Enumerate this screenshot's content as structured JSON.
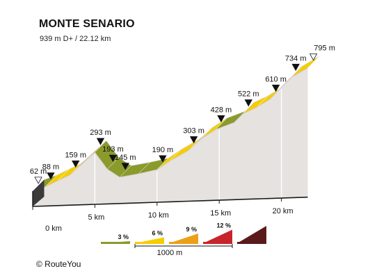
{
  "header": {
    "title": "MONTE SENARIO",
    "subtitle": "939 m D+ / 22.12 km"
  },
  "footer": {
    "credit": "© RouteYou"
  },
  "chart_data": {
    "type": "area",
    "title": "MONTE SENARIO",
    "subtitle": "939 m D+ / 22.12 km",
    "x_unit": "km",
    "y_unit": "m",
    "xlim": [
      0,
      22.12
    ],
    "x_ticks": [
      {
        "km": 0,
        "label": "0 km"
      },
      {
        "km": 5,
        "label": "5 km"
      },
      {
        "km": 10,
        "label": "10 km"
      },
      {
        "km": 15,
        "label": "15 km"
      },
      {
        "km": 20,
        "label": "20 km"
      }
    ],
    "profile": [
      {
        "km": 0.0,
        "elevation": 62
      },
      {
        "km": 1.0,
        "elevation": 88
      },
      {
        "km": 3.0,
        "elevation": 159
      },
      {
        "km": 5.0,
        "elevation": 293
      },
      {
        "km": 6.0,
        "elevation": 193
      },
      {
        "km": 7.0,
        "elevation": 145
      },
      {
        "km": 8.5,
        "elevation": 165
      },
      {
        "km": 10.0,
        "elevation": 190
      },
      {
        "km": 11.0,
        "elevation": 240
      },
      {
        "km": 12.5,
        "elevation": 303
      },
      {
        "km": 13.5,
        "elevation": 370
      },
      {
        "km": 14.7,
        "elevation": 428
      },
      {
        "km": 16.2,
        "elevation": 470
      },
      {
        "km": 16.9,
        "elevation": 522
      },
      {
        "km": 18.0,
        "elevation": 560
      },
      {
        "km": 19.1,
        "elevation": 610
      },
      {
        "km": 20.7,
        "elevation": 734
      },
      {
        "km": 22.12,
        "elevation": 795
      }
    ],
    "markers": [
      {
        "km": 0.0,
        "label": "62 m",
        "type": "start"
      },
      {
        "km": 1.0,
        "label": "88 m",
        "type": "point"
      },
      {
        "km": 3.0,
        "label": "159 m",
        "type": "point"
      },
      {
        "km": 5.0,
        "label": "293 m",
        "type": "point"
      },
      {
        "km": 6.0,
        "label": "193 m",
        "type": "point"
      },
      {
        "km": 7.0,
        "label": "145 m",
        "type": "point"
      },
      {
        "km": 10.0,
        "label": "190 m",
        "type": "point"
      },
      {
        "km": 12.5,
        "label": "303 m",
        "type": "point"
      },
      {
        "km": 14.7,
        "label": "428 m",
        "type": "point"
      },
      {
        "km": 16.9,
        "label": "522 m",
        "type": "point"
      },
      {
        "km": 19.1,
        "label": "610 m",
        "type": "point"
      },
      {
        "km": 20.7,
        "label": "734 m",
        "type": "point"
      },
      {
        "km": 22.12,
        "label": "795 m",
        "type": "end"
      }
    ],
    "gradient_legend": {
      "items": [
        {
          "label": "3 %",
          "color": "#8a9a2b"
        },
        {
          "label": "6 %",
          "color": "#f6cd00"
        },
        {
          "label": "9 %",
          "color": "#eba018"
        },
        {
          "label": "12 %",
          "color": "#c8242c"
        },
        {
          "label": "",
          "color": "#5a1a1a"
        }
      ],
      "scale_label": "1000 m"
    },
    "colors": {
      "side_wall": "#e6e2e0",
      "outline": "#1a1a1a",
      "top_edge": "#c9c3bd",
      "gridline": "#ffffff"
    }
  }
}
